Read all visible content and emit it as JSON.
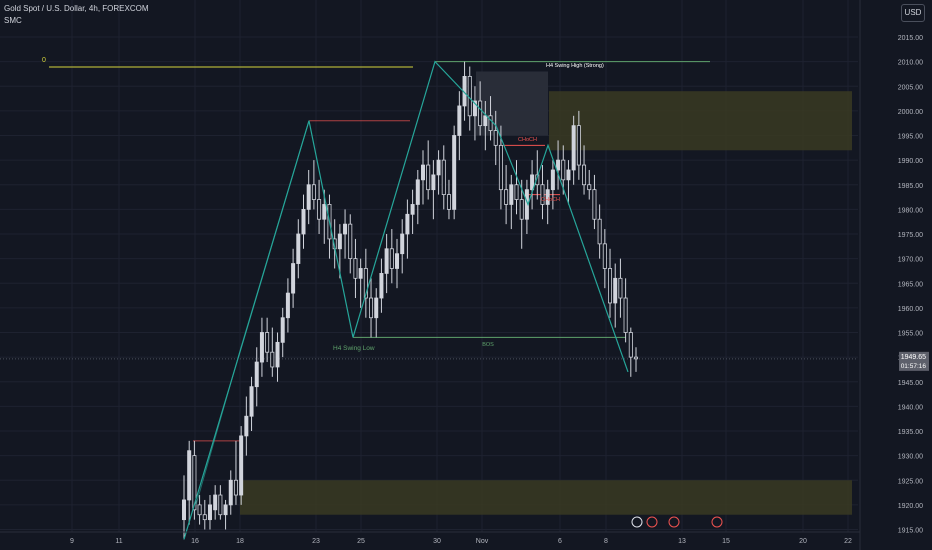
{
  "header": {
    "symbol_title": "Gold Spot / U.S. Dollar, 4h, FOREXCOM",
    "indicator": "SMC",
    "currency_button": "USD"
  },
  "price_axis": {
    "ticks": [
      "2015.00",
      "2010.00",
      "2005.00",
      "2000.00",
      "1995.00",
      "1990.00",
      "1985.00",
      "1980.00",
      "1975.00",
      "1970.00",
      "1965.00",
      "1960.00",
      "1955.00",
      "1950.00",
      "1945.00",
      "1940.00",
      "1935.00",
      "1930.00",
      "1925.00",
      "1920.00",
      "1915.00"
    ],
    "last_price": "1949.65",
    "countdown": "01:57:16"
  },
  "time_axis": {
    "ticks": [
      "9",
      "11",
      "16",
      "18",
      "23",
      "25",
      "30",
      "Nov",
      "6",
      "8",
      "13",
      "15",
      "20",
      "22"
    ]
  },
  "annotations": {
    "zero_label": "0",
    "swing_high": "H4 Swing High (Strong)",
    "swing_low": "H4 Swing Low",
    "bos": "BOS",
    "choch_1": "CHoCH",
    "choch_2": "CHoCH"
  },
  "colors": {
    "background": "#131722",
    "candle": "#d1d4dc",
    "zigzag": "#26a69a",
    "choch": "#ef5350",
    "zone_fill": "#3a3a22",
    "yellow_line": "#d4d43c",
    "swing_line": "#5fa36c"
  },
  "chart_data": {
    "type": "candlestick",
    "title": "Gold Spot / U.S. Dollar, 4h, FOREXCOM",
    "ylim": [
      1914,
      2019
    ],
    "y_ticks": [
      2015,
      2010,
      2005,
      2000,
      1995,
      1990,
      1985,
      1980,
      1975,
      1970,
      1965,
      1960,
      1955,
      1950,
      1945,
      1940,
      1935,
      1930,
      1925,
      1920,
      1915
    ],
    "x_ticks": [
      "9",
      "11",
      "16",
      "18",
      "23",
      "25",
      "30",
      "Nov",
      "6",
      "8",
      "13",
      "15",
      "20",
      "22"
    ],
    "zigzag_prices": [
      1913,
      1998,
      1954,
      2010,
      1997,
      1981,
      1993,
      1947
    ],
    "levels": {
      "swing_high": 2010,
      "swing_low": 1954,
      "current_price": 1949.65
    },
    "zones": [
      {
        "name": "supply",
        "from": 1992,
        "to": 2004
      },
      {
        "name": "demand",
        "from": 1918,
        "to": 1925
      },
      {
        "name": "order-block",
        "from": 1995,
        "to": 2008
      }
    ],
    "candles": [
      [
        1917,
        1926,
        1913,
        1921
      ],
      [
        1921,
        1933,
        1916,
        1931
      ],
      [
        1930,
        1933,
        1917,
        1919
      ],
      [
        1920,
        1922,
        1916,
        1918
      ],
      [
        1918,
        1921,
        1915,
        1917
      ],
      [
        1917,
        1922,
        1915,
        1920
      ],
      [
        1919,
        1924,
        1917,
        1922
      ],
      [
        1922,
        1924,
        1917,
        1918
      ],
      [
        1918,
        1921,
        1915,
        1920
      ],
      [
        1920,
        1927,
        1918,
        1925
      ],
      [
        1925,
        1933,
        1920,
        1922
      ],
      [
        1922,
        1936,
        1920,
        1934
      ],
      [
        1934,
        1942,
        1930,
        1938
      ],
      [
        1938,
        1946,
        1935,
        1944
      ],
      [
        1944,
        1952,
        1940,
        1949
      ],
      [
        1949,
        1958,
        1946,
        1955
      ],
      [
        1955,
        1958,
        1949,
        1951
      ],
      [
        1951,
        1956,
        1946,
        1948
      ],
      [
        1948,
        1955,
        1945,
        1953
      ],
      [
        1953,
        1960,
        1950,
        1958
      ],
      [
        1958,
        1966,
        1955,
        1963
      ],
      [
        1963,
        1972,
        1960,
        1969
      ],
      [
        1969,
        1978,
        1966,
        1975
      ],
      [
        1975,
        1983,
        1972,
        1980
      ],
      [
        1980,
        1988,
        1977,
        1985
      ],
      [
        1985,
        1990,
        1980,
        1982
      ],
      [
        1982,
        1986,
        1975,
        1978
      ],
      [
        1978,
        1984,
        1973,
        1981
      ],
      [
        1981,
        1983,
        1970,
        1974
      ],
      [
        1974,
        1978,
        1968,
        1972
      ],
      [
        1972,
        1977,
        1966,
        1975
      ],
      [
        1975,
        1980,
        1970,
        1977
      ],
      [
        1977,
        1979,
        1967,
        1970
      ],
      [
        1970,
        1974,
        1962,
        1966
      ],
      [
        1966,
        1970,
        1960,
        1968
      ],
      [
        1968,
        1972,
        1958,
        1962
      ],
      [
        1962,
        1966,
        1954,
        1958
      ],
      [
        1958,
        1964,
        1954,
        1962
      ],
      [
        1962,
        1970,
        1959,
        1967
      ],
      [
        1967,
        1975,
        1963,
        1972
      ],
      [
        1972,
        1976,
        1965,
        1968
      ],
      [
        1968,
        1974,
        1964,
        1971
      ],
      [
        1971,
        1978,
        1967,
        1975
      ],
      [
        1975,
        1982,
        1970,
        1979
      ],
      [
        1979,
        1984,
        1975,
        1981
      ],
      [
        1981,
        1988,
        1977,
        1986
      ],
      [
        1986,
        1992,
        1981,
        1989
      ],
      [
        1989,
        1994,
        1982,
        1984
      ],
      [
        1984,
        1990,
        1978,
        1987
      ],
      [
        1987,
        1992,
        1983,
        1990
      ],
      [
        1990,
        1993,
        1980,
        1983
      ],
      [
        1983,
        1986,
        1978,
        1980
      ],
      [
        1980,
        1997,
        1978,
        1995
      ],
      [
        1995,
        2004,
        1990,
        2001
      ],
      [
        2001,
        2010,
        1998,
        2007
      ],
      [
        2007,
        2009,
        1996,
        1999
      ],
      [
        1999,
        2005,
        1994,
        2002
      ],
      [
        2002,
        2006,
        1995,
        1997
      ],
      [
        1997,
        2002,
        1992,
        1999
      ],
      [
        1999,
        2003,
        1994,
        1996
      ],
      [
        1996,
        2000,
        1989,
        1993
      ],
      [
        1993,
        1997,
        1980,
        1984
      ],
      [
        1984,
        1989,
        1977,
        1981
      ],
      [
        1981,
        1987,
        1976,
        1985
      ],
      [
        1985,
        1990,
        1979,
        1982
      ],
      [
        1982,
        1986,
        1972,
        1978
      ],
      [
        1978,
        1986,
        1975,
        1984
      ],
      [
        1984,
        1990,
        1980,
        1987
      ],
      [
        1987,
        1992,
        1982,
        1985
      ],
      [
        1985,
        1989,
        1978,
        1981
      ],
      [
        1981,
        1986,
        1977,
        1984
      ],
      [
        1984,
        1990,
        1980,
        1988
      ],
      [
        1988,
        1994,
        1984,
        1990
      ],
      [
        1990,
        1993,
        1983,
        1986
      ],
      [
        1986,
        1990,
        1981,
        1988
      ],
      [
        1988,
        1999,
        1985,
        1997
      ],
      [
        1997,
        2000,
        1986,
        1989
      ],
      [
        1989,
        1993,
        1983,
        1985
      ],
      [
        1985,
        1988,
        1982,
        1984
      ],
      [
        1984,
        1987,
        1976,
        1978
      ],
      [
        1978,
        1981,
        1970,
        1973
      ],
      [
        1973,
        1976,
        1964,
        1968
      ],
      [
        1968,
        1972,
        1958,
        1961
      ],
      [
        1961,
        1969,
        1956,
        1966
      ],
      [
        1966,
        1970,
        1958,
        1962
      ],
      [
        1962,
        1966,
        1953,
        1955
      ],
      [
        1955,
        1956,
        1946,
        1950
      ],
      [
        1950,
        1952,
        1947,
        1949.65
      ]
    ]
  }
}
